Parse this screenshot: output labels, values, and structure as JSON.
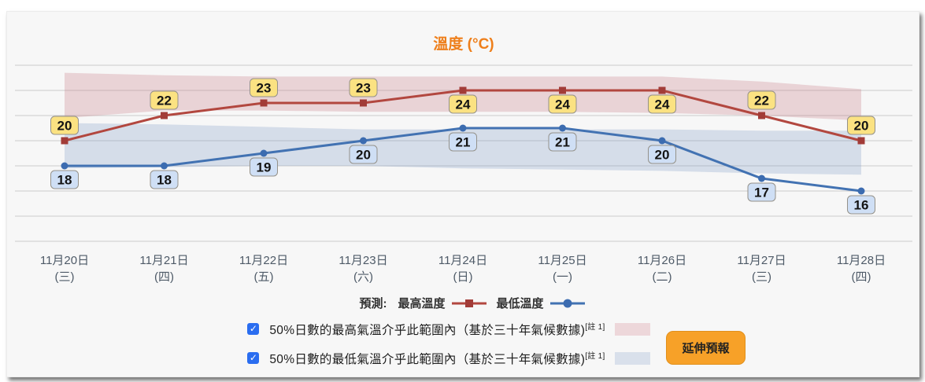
{
  "title": "溫度 (°C)",
  "legend": {
    "prefix": "預測:",
    "max_label": "最高溫度",
    "min_label": "最低溫度"
  },
  "controls": {
    "max_band": {
      "label": "50%日數的最高氣溫介乎此範圍內（基於三十年氣候數據)",
      "note": "[註 1]",
      "checked": true
    },
    "min_band": {
      "label": "50%日數的最低氣溫介乎此範圍內（基於三十年氣候數據)",
      "note": "[註 1]",
      "checked": true
    },
    "button_label": "延伸預報"
  },
  "colors": {
    "title": "#ee7f1b",
    "grid": "#cbcbcb",
    "max_line": "#b2473f",
    "max_marker": "#a23c38",
    "min_line": "#4272b2",
    "min_marker": "#3c6cb0",
    "max_band": "rgba(198,120,128,0.28)",
    "min_band": "rgba(125,156,199,0.28)",
    "max_label_bg": "#fbe282",
    "min_label_bg": "#cfdff5",
    "label_border": "#95928a",
    "label_text": "#141414",
    "checkbox": "#2a6df0",
    "button_bg": "#f7a128"
  },
  "chart_data": {
    "type": "line",
    "title": "溫度 (°C)",
    "xlabel": "",
    "ylabel": "溫度 (°C)",
    "ylim": [
      12,
      26
    ],
    "grid_step": 2,
    "grid": true,
    "legend_position": "bottom",
    "categories": [
      {
        "date": "11月20日",
        "weekday": "(三)"
      },
      {
        "date": "11月21日",
        "weekday": "(四)"
      },
      {
        "date": "11月22日",
        "weekday": "(五)"
      },
      {
        "date": "11月23日",
        "weekday": "(六)"
      },
      {
        "date": "11月24日",
        "weekday": "(日)"
      },
      {
        "date": "11月25日",
        "weekday": "(一)"
      },
      {
        "date": "11月26日",
        "weekday": "(二)"
      },
      {
        "date": "11月27日",
        "weekday": "(三)"
      },
      {
        "date": "11月28日",
        "weekday": "(四)"
      }
    ],
    "series": [
      {
        "id": "max-temp",
        "name": "最高溫度",
        "marker": "square",
        "values": [
          20,
          22,
          23,
          23,
          24,
          24,
          24,
          22,
          20
        ],
        "label_pos": [
          "above",
          "above",
          "above",
          "above",
          "below",
          "below",
          "below",
          "above",
          "above"
        ]
      },
      {
        "id": "min-temp",
        "name": "最低溫度",
        "marker": "circle",
        "values": [
          18,
          18,
          19,
          20,
          21,
          21,
          20,
          17,
          16
        ],
        "label_pos": [
          "below",
          "below",
          "below",
          "below",
          "below",
          "below",
          "below",
          "below",
          "below"
        ]
      }
    ],
    "bands": [
      {
        "id": "max-climate-band",
        "name": "50%日數的最高氣溫範圍",
        "top": [
          25.4,
          25.2,
          25.1,
          25.1,
          25.1,
          25.1,
          25.1,
          24.7,
          24.1
        ],
        "bottom": [
          21.8,
          22.4,
          22.4,
          22.3,
          22.3,
          22.3,
          22.2,
          22.0,
          21.6
        ]
      },
      {
        "id": "min-climate-band",
        "name": "50%日數的最低氣溫範圍",
        "top": [
          21.4,
          21.3,
          21.1,
          20.9,
          20.9,
          20.9,
          20.9,
          20.8,
          20.8
        ],
        "bottom": [
          17.8,
          17.9,
          18.0,
          18.0,
          17.8,
          17.7,
          17.6,
          17.4,
          17.3
        ]
      }
    ]
  }
}
